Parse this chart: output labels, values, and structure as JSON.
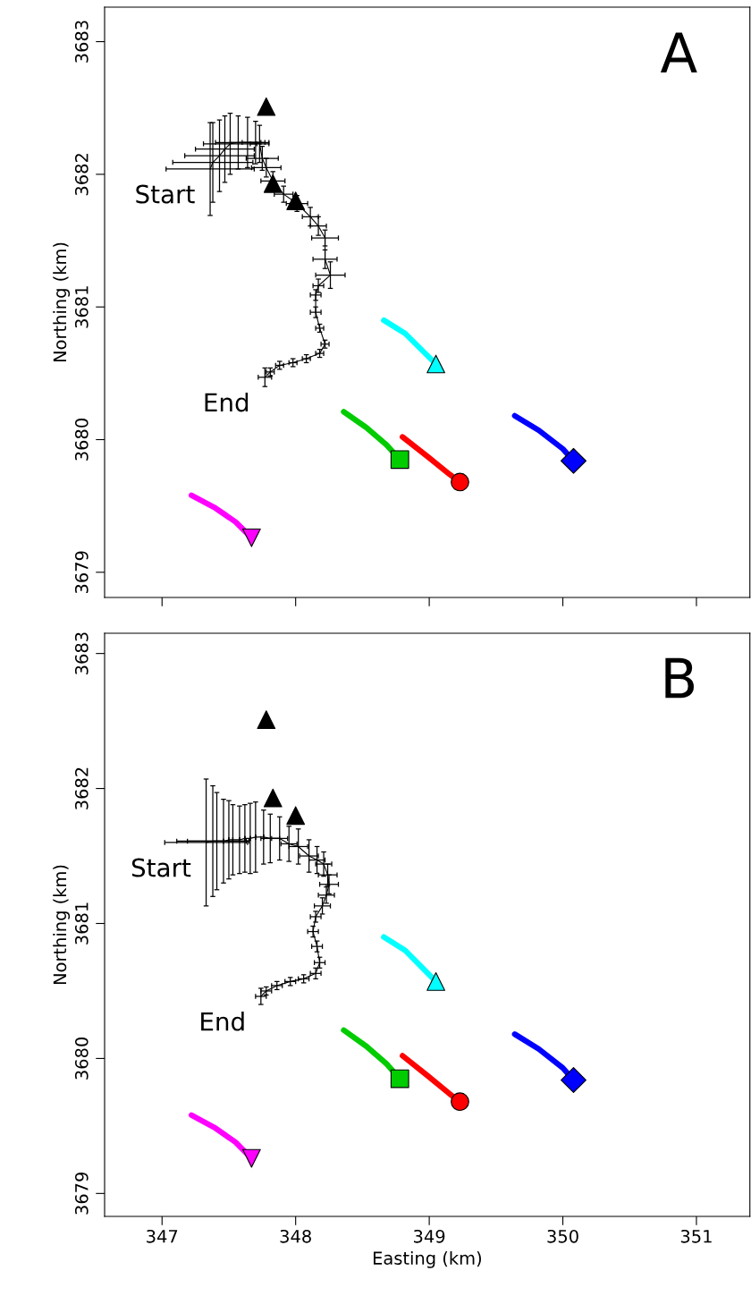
{
  "chart_data": [
    {
      "type": "scatter",
      "ylabel": "Northing (km)",
      "xlim": [
        346.57,
        351.4
      ],
      "xticks": [
        347,
        348,
        349,
        350,
        351
      ],
      "ylim": [
        3678.81,
        3683.26
      ],
      "yticks": [
        3679,
        3680,
        3681,
        3682,
        3683
      ],
      "tick_labels": "y",
      "grid": false,
      "legend": false,
      "annotations": [
        "A",
        {
          "text": "Start",
          "x": 347.36,
          "y": 3682.04
        },
        {
          "text": "End",
          "x": 347.77,
          "y": 3680.47
        }
      ],
      "series": [
        {
          "type": "line",
          "color": "#000000",
          "x": [
            347.36,
            347.38,
            347.43,
            347.47,
            347.51,
            347.57,
            347.64,
            347.7,
            347.73,
            347.75,
            347.78,
            347.83,
            347.91,
            348.01,
            348.11,
            348.17,
            348.22,
            348.22,
            348.26,
            348.17,
            348.15,
            348.15,
            348.18,
            348.22,
            348.18,
            348.08,
            347.98,
            347.88,
            347.81,
            347.77
          ],
          "values": [
            3682.04,
            3682.09,
            3682.14,
            3682.19,
            3682.23,
            3682.24,
            3682.24,
            3682.24,
            3682.23,
            3682.12,
            3682.05,
            3681.95,
            3681.85,
            3681.78,
            3681.68,
            3681.61,
            3681.52,
            3681.36,
            3681.24,
            3681.16,
            3681.09,
            3680.96,
            3680.84,
            3680.72,
            3680.65,
            3680.61,
            3680.58,
            3680.56,
            3680.51,
            3680.47
          ],
          "xerrors": [
            0.33,
            0.3,
            0.26,
            0.22,
            0.2,
            0.17,
            0.13,
            0.1,
            0.07,
            0.12,
            0.11,
            0.09,
            0.07,
            0.08,
            0.06,
            0.06,
            0.1,
            0.09,
            0.11,
            0.04,
            0.04,
            0.04,
            0.03,
            0.03,
            0.03,
            0.03,
            0.03,
            0.03,
            0.03,
            0.05
          ],
          "errors": [
            0.35,
            0.3,
            0.27,
            0.25,
            0.23,
            0.2,
            0.19,
            0.16,
            0.14,
            0.09,
            0.07,
            0.07,
            0.06,
            0.06,
            0.07,
            0.07,
            0.06,
            0.07,
            0.1,
            0.05,
            0.04,
            0.04,
            0.03,
            0.03,
            0.03,
            0.03,
            0.03,
            0.03,
            0.03,
            0.07
          ]
        },
        {
          "type": "scatter",
          "marker": "triangle",
          "color": "#000000",
          "x": [
            347.78,
            347.83,
            348.0
          ],
          "values": [
            3682.51,
            3681.93,
            3681.8
          ]
        },
        {
          "type": "line",
          "color": "#00ffff",
          "x": [
            348.66,
            348.82,
            348.97,
            349.05
          ],
          "values": [
            3680.9,
            3680.8,
            3680.65,
            3680.57
          ]
        },
        {
          "type": "scatter",
          "marker": "triangle",
          "color": "#00ffff",
          "x": [
            349.05
          ],
          "values": [
            3680.57
          ]
        },
        {
          "type": "line",
          "color": "#00cc00",
          "x": [
            348.36,
            348.53,
            348.68,
            348.78
          ],
          "values": [
            3680.21,
            3680.09,
            3679.96,
            3679.85
          ]
        },
        {
          "type": "scatter",
          "marker": "square",
          "color": "#00cc00",
          "x": [
            348.78
          ],
          "values": [
            3679.85
          ]
        },
        {
          "type": "line",
          "color": "#ff0000",
          "x": [
            348.8,
            348.99,
            349.15,
            349.23
          ],
          "values": [
            3680.02,
            3679.87,
            3679.74,
            3679.68
          ]
        },
        {
          "type": "scatter",
          "marker": "circle",
          "color": "#ff0000",
          "x": [
            349.23
          ],
          "values": [
            3679.68
          ]
        },
        {
          "type": "line",
          "color": "#0000ff",
          "x": [
            349.64,
            349.82,
            350.0,
            350.08
          ],
          "values": [
            3680.18,
            3680.07,
            3679.93,
            3679.84
          ]
        },
        {
          "type": "scatter",
          "marker": "diamond",
          "color": "#0000ff",
          "x": [
            350.08
          ],
          "values": [
            3679.84
          ]
        },
        {
          "type": "line",
          "color": "#ff00ff",
          "x": [
            347.22,
            347.39,
            347.55,
            347.67
          ],
          "values": [
            3679.58,
            3679.49,
            3679.38,
            3679.26
          ]
        },
        {
          "type": "scatter",
          "marker": "triangle_down",
          "color": "#ff00ff",
          "x": [
            347.67
          ],
          "values": [
            3679.26
          ]
        }
      ]
    },
    {
      "type": "scatter",
      "xlabel": "Easting (km)",
      "ylabel": "Northing (km)",
      "xlim": [
        346.57,
        351.4
      ],
      "xticks": [
        347,
        348,
        349,
        350,
        351
      ],
      "ylim": [
        3678.83,
        3683.15
      ],
      "yticks": [
        3679,
        3680,
        3681,
        3682,
        3683
      ],
      "grid": false,
      "legend": false,
      "annotations": [
        "B",
        {
          "text": "Start",
          "x": 347.33,
          "y": 3681.6
        },
        {
          "text": "End",
          "x": 347.74,
          "y": 3680.46
        }
      ],
      "series": [
        {
          "type": "line",
          "color": "#000000",
          "x": [
            347.33,
            347.38,
            347.41,
            347.46,
            347.5,
            347.53,
            347.58,
            347.62,
            347.66,
            347.7,
            347.76,
            347.81,
            347.88,
            347.95,
            348.02,
            348.1,
            348.16,
            348.21,
            348.24,
            348.25,
            348.23,
            348.2,
            348.15,
            348.13,
            348.16,
            348.18,
            348.15,
            348.06,
            347.96,
            347.86,
            347.78,
            347.74
          ],
          "values": [
            3681.6,
            3681.61,
            3681.61,
            3681.61,
            3681.62,
            3681.62,
            3681.62,
            3681.63,
            3681.63,
            3681.64,
            3681.64,
            3681.63,
            3681.63,
            3681.59,
            3681.57,
            3681.5,
            3681.47,
            3681.44,
            3681.36,
            3681.29,
            3681.21,
            3681.13,
            3681.05,
            3680.94,
            3680.83,
            3680.71,
            3680.63,
            3680.59,
            3680.57,
            3680.54,
            3680.5,
            3680.46
          ],
          "xerrors": [
            0.31,
            0.27,
            0.22,
            null,
            null,
            null,
            null,
            null,
            null,
            null,
            null,
            0.07,
            0.06,
            0.06,
            0.07,
            0.07,
            0.06,
            0.06,
            0.07,
            0.07,
            0.06,
            0.06,
            0.04,
            0.04,
            0.04,
            0.04,
            0.04,
            0.04,
            0.04,
            0.04,
            0.04,
            0.04
          ],
          "errors": [
            0.47,
            0.41,
            0.36,
            0.31,
            0.29,
            0.26,
            0.25,
            0.25,
            0.26,
            0.26,
            0.2,
            0.18,
            0.16,
            0.13,
            0.13,
            0.12,
            0.1,
            0.09,
            0.08,
            0.07,
            0.06,
            0.06,
            0.04,
            0.04,
            0.04,
            0.04,
            0.04,
            0.03,
            0.03,
            0.03,
            0.03,
            0.06
          ]
        },
        {
          "type": "scatter",
          "marker": "triangle",
          "color": "#000000",
          "x": [
            347.78,
            347.83,
            348.0
          ],
          "values": [
            3682.51,
            3681.93,
            3681.8
          ]
        },
        {
          "type": "line",
          "color": "#00ffff",
          "x": [
            348.66,
            348.82,
            348.97,
            349.05
          ],
          "values": [
            3680.9,
            3680.8,
            3680.65,
            3680.57
          ]
        },
        {
          "type": "scatter",
          "marker": "triangle",
          "color": "#00ffff",
          "x": [
            349.05
          ],
          "values": [
            3680.57
          ]
        },
        {
          "type": "line",
          "color": "#00cc00",
          "x": [
            348.36,
            348.53,
            348.68,
            348.78
          ],
          "values": [
            3680.21,
            3680.09,
            3679.96,
            3679.85
          ]
        },
        {
          "type": "scatter",
          "marker": "square",
          "color": "#00cc00",
          "x": [
            348.78
          ],
          "values": [
            3679.85
          ]
        },
        {
          "type": "line",
          "color": "#ff0000",
          "x": [
            348.8,
            348.99,
            349.15,
            349.23
          ],
          "values": [
            3680.02,
            3679.87,
            3679.74,
            3679.68
          ]
        },
        {
          "type": "scatter",
          "marker": "circle",
          "color": "#ff0000",
          "x": [
            349.23
          ],
          "values": [
            3679.68
          ]
        },
        {
          "type": "line",
          "color": "#0000ff",
          "x": [
            349.64,
            349.82,
            350.0,
            350.08
          ],
          "values": [
            3680.18,
            3680.07,
            3679.93,
            3679.84
          ]
        },
        {
          "type": "scatter",
          "marker": "diamond",
          "color": "#0000ff",
          "x": [
            350.08
          ],
          "values": [
            3679.84
          ]
        },
        {
          "type": "line",
          "color": "#ff00ff",
          "x": [
            347.22,
            347.39,
            347.55,
            347.67
          ],
          "values": [
            3679.58,
            3679.49,
            3679.38,
            3679.26
          ]
        },
        {
          "type": "scatter",
          "marker": "triangle_down",
          "color": "#ff00ff",
          "x": [
            347.67
          ],
          "values": [
            3679.26
          ]
        }
      ]
    }
  ]
}
